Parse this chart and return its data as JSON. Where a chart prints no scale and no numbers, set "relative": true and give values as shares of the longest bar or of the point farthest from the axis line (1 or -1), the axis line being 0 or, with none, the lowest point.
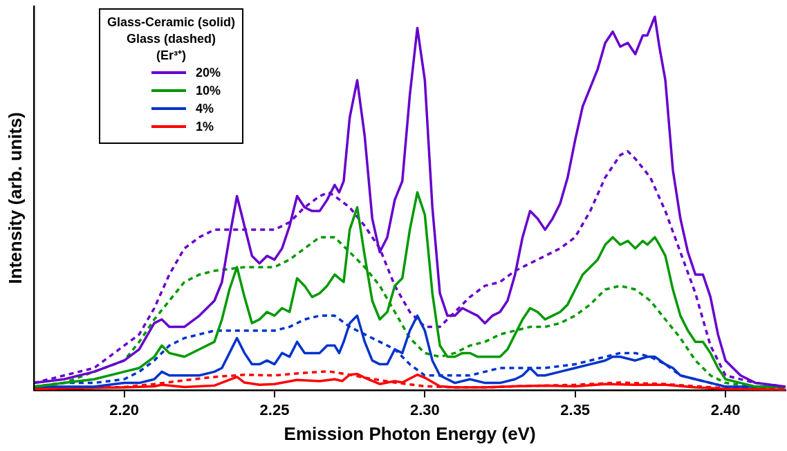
{
  "chart_data": {
    "type": "line",
    "xlabel": "Emission Photon Energy (eV)",
    "ylabel": "Intensity (arb. units)",
    "relative": true,
    "legend": "top left",
    "legend_title": "Glass-Ceramic (solid)\nGlass (dashed)\n(Er³⁺)",
    "xlim": [
      2.17,
      2.42
    ],
    "xticks": [
      {
        "value": 2.2,
        "label": "2.20"
      },
      {
        "value": 2.25,
        "label": "2.25"
      },
      {
        "value": 2.3,
        "label": "2.30"
      },
      {
        "value": 2.35,
        "label": "2.35"
      },
      {
        "value": 2.4,
        "label": "2.40"
      }
    ],
    "series": [
      {
        "name": "20%",
        "color": "#6600cc",
        "line_style": "solid",
        "x": [
          2.17,
          2.18,
          2.19,
          2.2,
          2.205,
          2.21,
          2.2125,
          2.215,
          2.22,
          2.225,
          2.23,
          2.2325,
          2.235,
          2.2375,
          2.24,
          2.2425,
          2.245,
          2.2475,
          2.25,
          2.2525,
          2.255,
          2.2575,
          2.26,
          2.2625,
          2.265,
          2.2675,
          2.27,
          2.2715,
          2.273,
          2.275,
          2.2775,
          2.28,
          2.2825,
          2.285,
          2.2875,
          2.29,
          2.2925,
          2.295,
          2.2975,
          2.3,
          2.3025,
          2.305,
          2.3075,
          2.31,
          2.3125,
          2.315,
          2.3175,
          2.32,
          2.3225,
          2.325,
          2.3275,
          2.33,
          2.3325,
          2.335,
          2.3375,
          2.34,
          2.3425,
          2.345,
          2.3475,
          2.35,
          2.3525,
          2.355,
          2.3575,
          2.36,
          2.3625,
          2.365,
          2.3675,
          2.37,
          2.3725,
          2.374,
          2.3765,
          2.378,
          2.38,
          2.3825,
          2.385,
          2.3875,
          2.39,
          2.3925,
          2.395,
          2.3975,
          2.4,
          2.405,
          2.41,
          2.42
        ],
        "values": [
          0.02,
          0.03,
          0.05,
          0.08,
          0.11,
          0.18,
          0.19,
          0.17,
          0.17,
          0.2,
          0.24,
          0.29,
          0.41,
          0.52,
          0.44,
          0.36,
          0.34,
          0.36,
          0.35,
          0.38,
          0.44,
          0.52,
          0.49,
          0.48,
          0.48,
          0.51,
          0.55,
          0.53,
          0.56,
          0.73,
          0.83,
          0.68,
          0.46,
          0.37,
          0.41,
          0.51,
          0.56,
          0.79,
          0.97,
          0.83,
          0.49,
          0.26,
          0.2,
          0.2,
          0.22,
          0.21,
          0.2,
          0.18,
          0.2,
          0.21,
          0.24,
          0.31,
          0.41,
          0.48,
          0.46,
          0.43,
          0.46,
          0.5,
          0.57,
          0.67,
          0.76,
          0.81,
          0.86,
          0.93,
          0.96,
          0.92,
          0.93,
          0.9,
          0.95,
          0.95,
          1.0,
          0.92,
          0.83,
          0.59,
          0.46,
          0.37,
          0.31,
          0.31,
          0.25,
          0.15,
          0.08,
          0.04,
          0.02,
          0.01
        ]
      },
      {
        "name": "10%",
        "color": "#009900",
        "line_style": "solid",
        "x": [
          2.17,
          2.18,
          2.19,
          2.2,
          2.205,
          2.21,
          2.2125,
          2.215,
          2.22,
          2.225,
          2.23,
          2.2325,
          2.235,
          2.2375,
          2.24,
          2.2425,
          2.245,
          2.2475,
          2.25,
          2.2525,
          2.255,
          2.2575,
          2.26,
          2.2625,
          2.265,
          2.2675,
          2.27,
          2.2715,
          2.273,
          2.275,
          2.2775,
          2.28,
          2.2825,
          2.285,
          2.2875,
          2.29,
          2.2925,
          2.295,
          2.2975,
          2.3,
          2.3025,
          2.305,
          2.3075,
          2.31,
          2.3125,
          2.315,
          2.3175,
          2.32,
          2.3225,
          2.325,
          2.3275,
          2.33,
          2.3325,
          2.335,
          2.3375,
          2.34,
          2.3425,
          2.345,
          2.3475,
          2.35,
          2.3525,
          2.355,
          2.3575,
          2.36,
          2.3625,
          2.365,
          2.3675,
          2.37,
          2.3725,
          2.374,
          2.3765,
          2.378,
          2.38,
          2.3825,
          2.385,
          2.3875,
          2.39,
          2.3925,
          2.395,
          2.3975,
          2.4,
          2.405,
          2.41,
          2.42
        ],
        "values": [
          0.01,
          0.02,
          0.03,
          0.05,
          0.06,
          0.09,
          0.12,
          0.1,
          0.09,
          0.11,
          0.13,
          0.19,
          0.27,
          0.33,
          0.25,
          0.18,
          0.19,
          0.21,
          0.2,
          0.22,
          0.21,
          0.3,
          0.28,
          0.25,
          0.26,
          0.28,
          0.31,
          0.3,
          0.29,
          0.43,
          0.49,
          0.36,
          0.24,
          0.19,
          0.21,
          0.28,
          0.3,
          0.43,
          0.53,
          0.47,
          0.26,
          0.12,
          0.09,
          0.09,
          0.1,
          0.1,
          0.09,
          0.09,
          0.09,
          0.09,
          0.11,
          0.15,
          0.19,
          0.22,
          0.21,
          0.19,
          0.2,
          0.21,
          0.23,
          0.27,
          0.31,
          0.33,
          0.35,
          0.39,
          0.41,
          0.39,
          0.4,
          0.38,
          0.4,
          0.39,
          0.41,
          0.39,
          0.36,
          0.27,
          0.2,
          0.16,
          0.13,
          0.13,
          0.1,
          0.06,
          0.03,
          0.02,
          0.01,
          0.01
        ]
      },
      {
        "name": "4%",
        "color": "#0033cc",
        "line_style": "solid",
        "x": [
          2.17,
          2.18,
          2.19,
          2.2,
          2.205,
          2.21,
          2.2125,
          2.215,
          2.22,
          2.225,
          2.23,
          2.2325,
          2.235,
          2.2375,
          2.24,
          2.2425,
          2.245,
          2.2475,
          2.25,
          2.2525,
          2.255,
          2.2575,
          2.26,
          2.2625,
          2.265,
          2.2675,
          2.27,
          2.2715,
          2.273,
          2.275,
          2.2775,
          2.28,
          2.2825,
          2.285,
          2.2875,
          2.29,
          2.2925,
          2.295,
          2.2975,
          2.3,
          2.3025,
          2.305,
          2.3075,
          2.31,
          2.315,
          2.32,
          2.325,
          2.33,
          2.3325,
          2.335,
          2.3375,
          2.34,
          2.345,
          2.35,
          2.355,
          2.36,
          2.3625,
          2.365,
          2.37,
          2.374,
          2.3765,
          2.38,
          2.3825,
          2.385,
          2.39,
          2.395,
          2.4,
          2.41,
          2.42
        ],
        "values": [
          0.01,
          0.01,
          0.01,
          0.02,
          0.02,
          0.03,
          0.05,
          0.04,
          0.04,
          0.04,
          0.05,
          0.06,
          0.1,
          0.14,
          0.1,
          0.07,
          0.07,
          0.08,
          0.07,
          0.1,
          0.09,
          0.13,
          0.1,
          0.1,
          0.1,
          0.12,
          0.12,
          0.1,
          0.13,
          0.18,
          0.2,
          0.13,
          0.08,
          0.07,
          0.07,
          0.11,
          0.1,
          0.16,
          0.2,
          0.16,
          0.08,
          0.04,
          0.03,
          0.02,
          0.03,
          0.02,
          0.02,
          0.03,
          0.04,
          0.06,
          0.04,
          0.04,
          0.05,
          0.06,
          0.07,
          0.08,
          0.09,
          0.09,
          0.08,
          0.09,
          0.09,
          0.07,
          0.06,
          0.04,
          0.03,
          0.02,
          0.01,
          0.01,
          0.01
        ]
      },
      {
        "name": "1%",
        "color": "#ff0000",
        "line_style": "solid",
        "x": [
          2.17,
          2.2,
          2.21,
          2.2125,
          2.22,
          2.23,
          2.2375,
          2.24,
          2.245,
          2.25,
          2.2575,
          2.265,
          2.27,
          2.2725,
          2.275,
          2.2775,
          2.28,
          2.285,
          2.29,
          2.2925,
          2.2975,
          2.3,
          2.305,
          2.31,
          2.32,
          2.33,
          2.34,
          2.35,
          2.36,
          2.37,
          2.38,
          2.39,
          2.4,
          2.42
        ],
        "values": [
          0.004,
          0.008,
          0.011,
          0.015,
          0.009,
          0.013,
          0.036,
          0.021,
          0.015,
          0.017,
          0.028,
          0.025,
          0.03,
          0.025,
          0.042,
          0.044,
          0.034,
          0.017,
          0.025,
          0.021,
          0.042,
          0.034,
          0.011,
          0.008,
          0.008,
          0.011,
          0.013,
          0.011,
          0.017,
          0.015,
          0.015,
          0.008,
          0.004,
          0.002
        ]
      },
      {
        "color": "#6600cc",
        "line_style": "dashed",
        "x": [
          2.17,
          2.18,
          2.19,
          2.2,
          2.205,
          2.21,
          2.215,
          2.22,
          2.225,
          2.23,
          2.24,
          2.25,
          2.255,
          2.26,
          2.265,
          2.268,
          2.27,
          2.275,
          2.28,
          2.285,
          2.29,
          2.295,
          2.3,
          2.305,
          2.31,
          2.315,
          2.32,
          2.325,
          2.33,
          2.335,
          2.34,
          2.345,
          2.35,
          2.355,
          2.36,
          2.365,
          2.3675,
          2.37,
          2.375,
          2.38,
          2.385,
          2.39,
          2.395,
          2.4,
          2.41,
          2.42
        ],
        "values": [
          0.02,
          0.04,
          0.06,
          0.12,
          0.15,
          0.22,
          0.31,
          0.38,
          0.41,
          0.43,
          0.43,
          0.43,
          0.45,
          0.49,
          0.52,
          0.53,
          0.52,
          0.49,
          0.44,
          0.38,
          0.28,
          0.21,
          0.17,
          0.17,
          0.21,
          0.25,
          0.28,
          0.29,
          0.32,
          0.34,
          0.36,
          0.38,
          0.41,
          0.48,
          0.57,
          0.63,
          0.64,
          0.62,
          0.57,
          0.48,
          0.37,
          0.26,
          0.12,
          0.04,
          0.02,
          0.01
        ]
      },
      {
        "color": "#009900",
        "line_style": "dashed",
        "x": [
          2.17,
          2.18,
          2.19,
          2.2,
          2.205,
          2.21,
          2.215,
          2.22,
          2.225,
          2.23,
          2.24,
          2.25,
          2.255,
          2.26,
          2.265,
          2.268,
          2.27,
          2.275,
          2.28,
          2.285,
          2.29,
          2.295,
          2.3,
          2.305,
          2.31,
          2.315,
          2.32,
          2.325,
          2.33,
          2.335,
          2.34,
          2.345,
          2.35,
          2.355,
          2.36,
          2.365,
          2.37,
          2.375,
          2.38,
          2.385,
          2.39,
          2.395,
          2.4,
          2.41,
          2.42
        ],
        "values": [
          0.01,
          0.02,
          0.05,
          0.08,
          0.13,
          0.19,
          0.24,
          0.29,
          0.31,
          0.32,
          0.33,
          0.33,
          0.35,
          0.38,
          0.41,
          0.41,
          0.41,
          0.37,
          0.33,
          0.28,
          0.21,
          0.14,
          0.1,
          0.09,
          0.1,
          0.12,
          0.13,
          0.15,
          0.16,
          0.17,
          0.17,
          0.18,
          0.2,
          0.23,
          0.27,
          0.28,
          0.27,
          0.24,
          0.19,
          0.14,
          0.08,
          0.04,
          0.02,
          0.01,
          0.004
        ]
      },
      {
        "color": "#0033cc",
        "line_style": "dashed",
        "x": [
          2.17,
          2.18,
          2.19,
          2.2,
          2.205,
          2.21,
          2.215,
          2.22,
          2.225,
          2.23,
          2.24,
          2.25,
          2.255,
          2.26,
          2.265,
          2.268,
          2.27,
          2.275,
          2.28,
          2.285,
          2.29,
          2.295,
          2.3,
          2.305,
          2.31,
          2.315,
          2.32,
          2.325,
          2.33,
          2.34,
          2.35,
          2.355,
          2.36,
          2.365,
          2.37,
          2.375,
          2.38,
          2.385,
          2.39,
          2.395,
          2.4,
          2.42
        ],
        "values": [
          0.01,
          0.02,
          0.02,
          0.03,
          0.05,
          0.08,
          0.12,
          0.14,
          0.15,
          0.16,
          0.16,
          0.16,
          0.17,
          0.19,
          0.2,
          0.2,
          0.2,
          0.17,
          0.15,
          0.13,
          0.11,
          0.07,
          0.04,
          0.04,
          0.04,
          0.04,
          0.05,
          0.06,
          0.06,
          0.06,
          0.07,
          0.08,
          0.09,
          0.1,
          0.1,
          0.09,
          0.07,
          0.04,
          0.03,
          0.02,
          0.01,
          0.004
        ]
      },
      {
        "color": "#ff0000",
        "line_style": "dashed",
        "x": [
          2.17,
          2.2,
          2.21,
          2.22,
          2.23,
          2.24,
          2.25,
          2.26,
          2.268,
          2.275,
          2.28,
          2.29,
          2.3,
          2.31,
          2.32,
          2.33,
          2.35,
          2.365,
          2.38,
          2.39,
          2.4,
          2.42
        ],
        "values": [
          0.004,
          0.009,
          0.017,
          0.027,
          0.036,
          0.042,
          0.04,
          0.047,
          0.051,
          0.042,
          0.034,
          0.021,
          0.011,
          0.008,
          0.008,
          0.011,
          0.015,
          0.021,
          0.017,
          0.011,
          0.006,
          0.002
        ]
      }
    ]
  }
}
